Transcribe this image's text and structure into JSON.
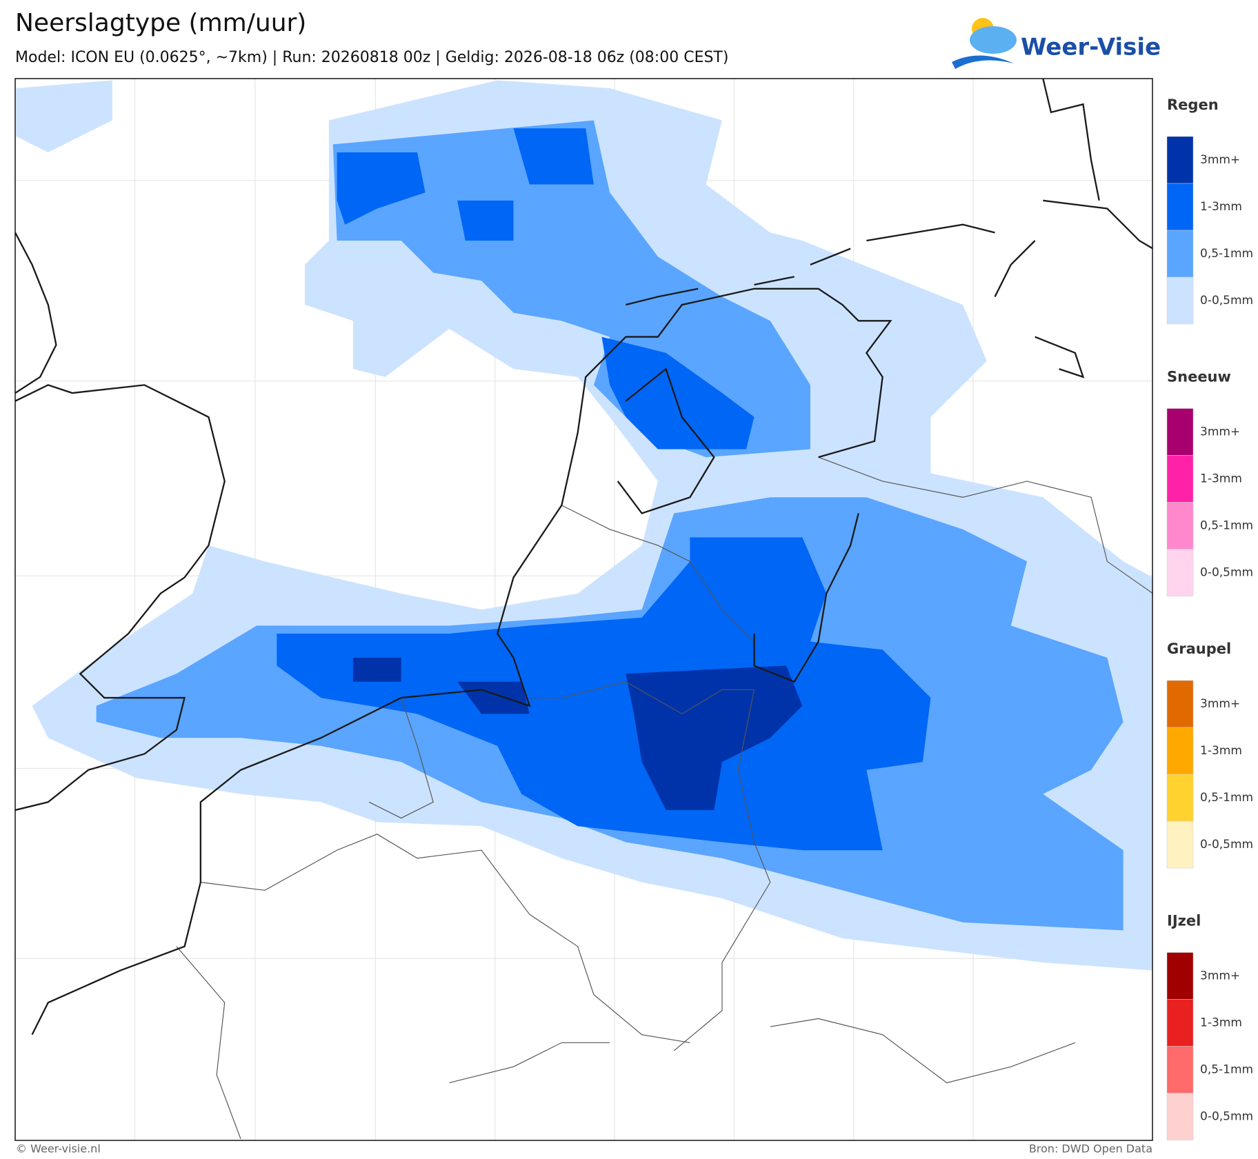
{
  "header": {
    "title": "Neerslagtype (mm/uur)",
    "subtitle": "Model: ICON EU (0.0625°, ~7km)  |  Run: 20260818 00z  |  Geldig: 2026-08-18 06z (08:00 CEST)",
    "logo": "Weer-Visie"
  },
  "legend": [
    {
      "title": "Regen",
      "items": [
        {
          "label": "3mm+",
          "color": "#0033aa"
        },
        {
          "label": "1-3mm",
          "color": "#0066f5"
        },
        {
          "label": "0,5-1mm",
          "color": "#5aa5ff"
        },
        {
          "label": "0-0,5mm",
          "color": "#cce3ff"
        }
      ]
    },
    {
      "title": "Sneeuw",
      "items": [
        {
          "label": "3mm+",
          "color": "#a8006e"
        },
        {
          "label": "1-3mm",
          "color": "#ff22a8"
        },
        {
          "label": "0,5-1mm",
          "color": "#ff88cc"
        },
        {
          "label": "0-0,5mm",
          "color": "#ffd4ec"
        }
      ]
    },
    {
      "title": "Graupel",
      "items": [
        {
          "label": "3mm+",
          "color": "#e06a00"
        },
        {
          "label": "1-3mm",
          "color": "#ffa800"
        },
        {
          "label": "0,5-1mm",
          "color": "#ffd230"
        },
        {
          "label": "0-0,5mm",
          "color": "#fff2c0"
        }
      ]
    },
    {
      "title": "IJzel",
      "items": [
        {
          "label": "3mm+",
          "color": "#a00000"
        },
        {
          "label": "1-3mm",
          "color": "#e82020"
        },
        {
          "label": "0,5-1mm",
          "color": "#ff6a6a"
        },
        {
          "label": "0-0,5mm",
          "color": "#ffd0d0"
        }
      ]
    }
  ],
  "footer": {
    "left": "© Weer-visie.nl",
    "right": "Bron: DWD Open Data"
  }
}
